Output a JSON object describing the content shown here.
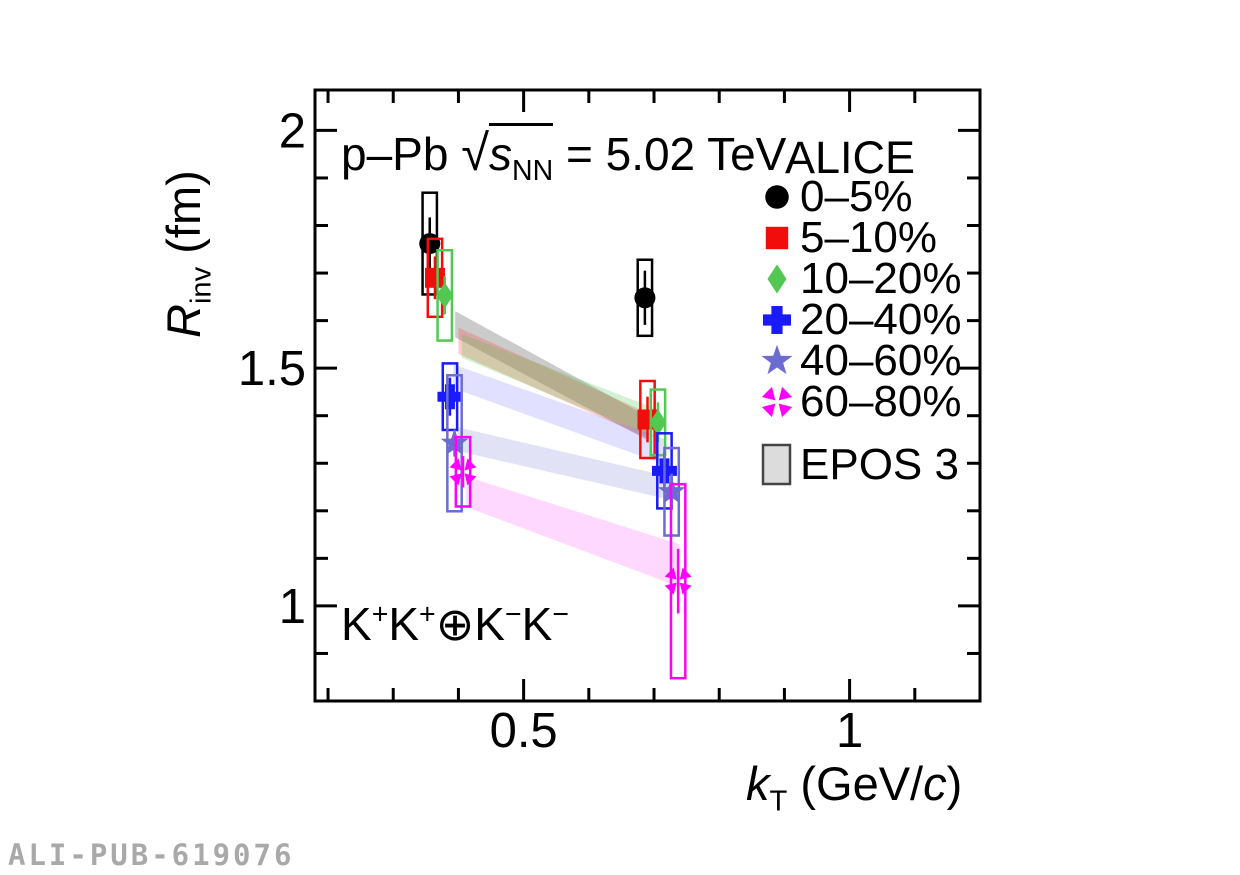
{
  "watermark": "ALI-PUB-619076",
  "annotations": {
    "system": {
      "text": "p–Pb √s_NN = 5.02 TeV",
      "segments": [
        {
          "t": "p–Pb "
        },
        {
          "t": "√"
        },
        {
          "g": [
            {
              "t": "s",
              "i": true
            },
            {
              "t": "NN",
              "sub": true
            }
          ],
          "over": true
        },
        {
          "t": " = 5.02 TeV"
        }
      ]
    },
    "pair": {
      "text": "K+K+⊕K−K−",
      "segments": [
        {
          "t": "K"
        },
        {
          "t": "+",
          "sup": true
        },
        {
          "t": "K"
        },
        {
          "t": "+",
          "sup": true
        },
        {
          "t": "⊕"
        },
        {
          "t": "K"
        },
        {
          "t": "−",
          "sup": true
        },
        {
          "t": "K"
        },
        {
          "t": "−",
          "sup": true
        }
      ]
    }
  },
  "axes": {
    "x_title": {
      "text": "kT (GeV/c)",
      "segments": [
        {
          "t": "k",
          "i": true
        },
        {
          "t": "T",
          "sub": true
        },
        {
          "t": " (GeV/"
        },
        {
          "t": "c",
          "i": true
        },
        {
          "t": ")"
        }
      ]
    },
    "y_title": {
      "text": "Rinv (fm)",
      "segments": [
        {
          "t": "R",
          "i": true
        },
        {
          "t": "inv",
          "sub": true
        },
        {
          "t": " (fm)"
        }
      ]
    }
  },
  "legend": {
    "title": "ALICE",
    "items": [
      {
        "id": "0-5",
        "label": "0–5%",
        "marker": "circle",
        "color": "#000000"
      },
      {
        "id": "5-10",
        "label": "5–10%",
        "marker": "square",
        "color": "#f20d0d"
      },
      {
        "id": "10-20",
        "label": "10–20%",
        "marker": "diamond",
        "color": "#52c852"
      },
      {
        "id": "20-40",
        "label": "20–40%",
        "marker": "cross",
        "color": "#1a1aff"
      },
      {
        "id": "40-60",
        "label": "40–60%",
        "marker": "star",
        "color": "#6c6cd0"
      },
      {
        "id": "60-80",
        "label": "60–80%",
        "marker": "pinwheel",
        "color": "#ff00ff"
      }
    ],
    "model": {
      "label": "EPOS 3",
      "fill": "#dcdcdc",
      "stroke": "#444444"
    }
  },
  "chart_data": {
    "type": "scatter",
    "xlabel": "kT (GeV/c)",
    "ylabel": "Rinv (fm)",
    "xlim": [
      0.18,
      1.2
    ],
    "ylim": [
      0.8,
      2.085
    ],
    "x_ticks": [
      {
        "v": 0.5,
        "label": "0.5"
      },
      {
        "v": 1.0,
        "label": "1"
      }
    ],
    "x_minor_ticks": [
      0.2,
      0.3,
      0.4,
      0.6,
      0.7,
      0.8,
      0.9,
      1.1
    ],
    "y_ticks": [
      {
        "v": 1.0,
        "label": "1"
      },
      {
        "v": 1.5,
        "label": "1.5"
      },
      {
        "v": 2.0,
        "label": "2"
      }
    ],
    "y_minor_ticks": [
      0.9,
      1.1,
      1.2,
      1.3,
      1.4,
      1.6,
      1.7,
      1.8,
      1.9
    ],
    "syst_box_half_width_kT": 0.011,
    "series": [
      {
        "id": "0-5",
        "name": "0–5%",
        "marker": "circle",
        "color": "#000000",
        "band_color": "rgba(140,140,140,0.45)",
        "points": [
          {
            "kT": 0.356,
            "R": 1.762,
            "stat": 0.055,
            "syst": 0.107
          },
          {
            "kT": 0.686,
            "R": 1.648,
            "stat": 0.057,
            "syst": 0.08
          }
        ],
        "epos_band": {
          "x": [
            0.395,
            0.688
          ],
          "top": [
            1.62,
            1.4
          ],
          "bottom": [
            1.565,
            1.35
          ]
        }
      },
      {
        "id": "5-10",
        "name": "5–10%",
        "marker": "square",
        "color": "#f20d0d",
        "band_color": "rgba(255,70,70,0.28)",
        "points": [
          {
            "kT": 0.364,
            "R": 1.69,
            "stat": 0.045,
            "syst": 0.082
          },
          {
            "kT": 0.69,
            "R": 1.392,
            "stat": 0.048,
            "syst": 0.081
          }
        ],
        "epos_band": {
          "x": [
            0.4,
            0.692
          ],
          "top": [
            1.585,
            1.405
          ],
          "bottom": [
            1.53,
            1.352
          ]
        }
      },
      {
        "id": "10-20",
        "name": "10–20%",
        "marker": "diamond",
        "color": "#52c852",
        "band_color": "rgba(80,200,80,0.25)",
        "points": [
          {
            "kT": 0.379,
            "R": 1.653,
            "stat": 0.04,
            "syst": 0.095
          },
          {
            "kT": 0.706,
            "R": 1.386,
            "stat": 0.042,
            "syst": 0.069
          }
        ],
        "epos_band": {
          "x": [
            0.405,
            0.708
          ],
          "top": [
            1.572,
            1.412
          ],
          "bottom": [
            1.522,
            1.35
          ]
        }
      },
      {
        "id": "20-40",
        "name": "20–40%",
        "marker": "cross",
        "color": "#1a1aff",
        "band_color": "rgba(80,80,255,0.17)",
        "points": [
          {
            "kT": 0.387,
            "R": 1.44,
            "stat": 0.04,
            "syst": 0.07
          },
          {
            "kT": 0.716,
            "R": 1.284,
            "stat": 0.04,
            "syst": 0.079
          }
        ],
        "epos_band": {
          "x": [
            0.392,
            0.718
          ],
          "top": [
            1.508,
            1.35
          ],
          "bottom": [
            1.458,
            1.296
          ]
        }
      },
      {
        "id": "40-60",
        "name": "40–60%",
        "marker": "star",
        "color": "#6c6cd0",
        "band_color": "rgba(108,108,208,0.20)",
        "points": [
          {
            "kT": 0.394,
            "R": 1.342,
            "stat": 0.028,
            "syst": 0.143
          },
          {
            "kT": 0.727,
            "R": 1.24,
            "stat": 0.038,
            "syst": 0.092
          }
        ],
        "epos_band": {
          "x": [
            0.398,
            0.729
          ],
          "top": [
            1.376,
            1.27
          ],
          "bottom": [
            1.326,
            1.222
          ]
        }
      },
      {
        "id": "60-80",
        "name": "60–80%",
        "marker": "pinwheel",
        "color": "#ff00ff",
        "band_color": "rgba(255,60,255,0.20)",
        "points": [
          {
            "kT": 0.407,
            "R": 1.282,
            "stat": 0.033,
            "syst": 0.073
          },
          {
            "kT": 0.737,
            "R": 1.052,
            "stat": 0.068,
            "syst": 0.204
          }
        ],
        "epos_band": {
          "x": [
            0.412,
            0.739
          ],
          "top": [
            1.272,
            1.13
          ],
          "bottom": [
            1.208,
            1.04
          ]
        }
      }
    ]
  }
}
